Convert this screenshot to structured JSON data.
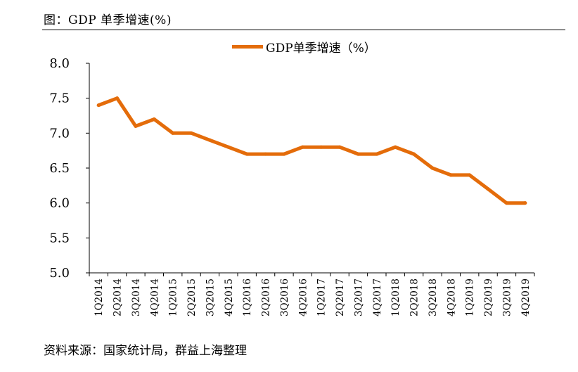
{
  "figure_title": "图：GDP 单季增速(%)",
  "source_note": "资料来源：国家统计局，群益上海整理",
  "chart_data": {
    "type": "line",
    "categories": [
      "1Q2014",
      "2Q2014",
      "3Q2014",
      "4Q2014",
      "1Q2015",
      "2Q2015",
      "3Q2015",
      "4Q2015",
      "1Q2016",
      "2Q2016",
      "3Q2016",
      "4Q2016",
      "1Q2017",
      "2Q2017",
      "3Q2017",
      "4Q2017",
      "1Q2018",
      "2Q2018",
      "3Q2018",
      "4Q2018",
      "1Q2019",
      "2Q2019",
      "3Q2019",
      "4Q2019"
    ],
    "series": [
      {
        "name": "GDP单季增速（%）",
        "values": [
          7.4,
          7.5,
          7.1,
          7.2,
          7.0,
          7.0,
          6.9,
          6.8,
          6.7,
          6.7,
          6.7,
          6.8,
          6.8,
          6.8,
          6.7,
          6.7,
          6.8,
          6.7,
          6.5,
          6.4,
          6.4,
          6.2,
          6.0,
          6.0
        ],
        "color": "#E46C0A"
      }
    ],
    "ylim": [
      5.0,
      8.0
    ],
    "yticks": [
      "5.0",
      "5.5",
      "6.0",
      "6.5",
      "7.0",
      "7.5",
      "8.0"
    ],
    "legend_position": "top-center",
    "grid": false
  }
}
